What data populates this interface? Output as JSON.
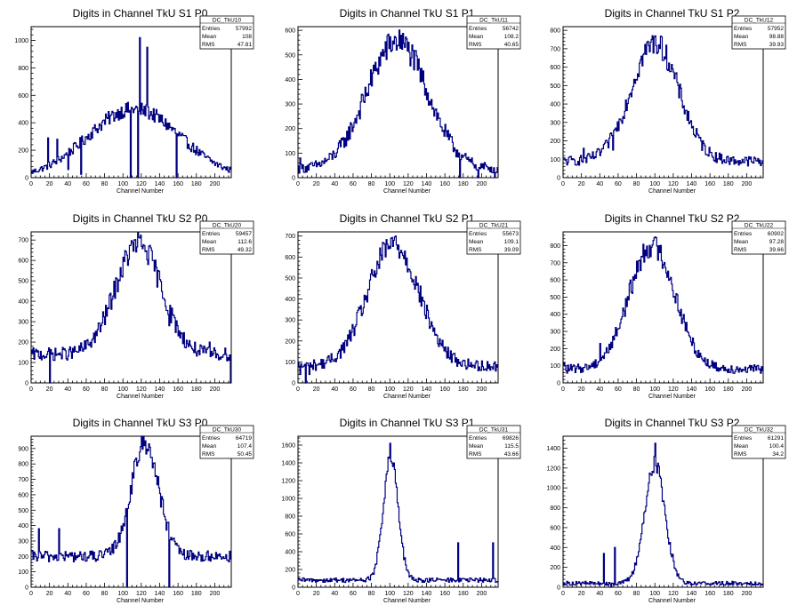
{
  "chart_data": [
    {
      "type": "histogram",
      "title": "Digits in Channel TkU S1 P0",
      "xlabel": "Channel Number",
      "stats": {
        "name": "DC_TkU10",
        "entries": "57992",
        "mean": "108",
        "rms": "47.81"
      },
      "xlim": [
        0,
        218
      ],
      "ylim": [
        0,
        1100
      ],
      "xticks": [
        0,
        20,
        40,
        60,
        80,
        100,
        120,
        140,
        160,
        180,
        200
      ],
      "yticks": [
        0,
        200,
        400,
        600,
        800,
        1000
      ],
      "profile": {
        "type": "peak",
        "mu": 112,
        "sigma": 50,
        "amp": 500,
        "base": 0
      },
      "spikes": [
        [
          118,
          1020
        ],
        [
          126,
          950
        ],
        [
          18,
          290
        ],
        [
          28,
          280
        ],
        [
          40,
          60
        ],
        [
          54,
          25
        ],
        [
          108,
          0
        ],
        [
          116,
          0
        ],
        [
          158,
          0
        ]
      ],
      "color": "#000080"
    },
    {
      "type": "histogram",
      "title": "Digits in Channel TkU S1 P1",
      "xlabel": "Channel Number",
      "stats": {
        "name": "DC_TkU11",
        "entries": "56742",
        "mean": "108.2",
        "rms": "40.65"
      },
      "xlim": [
        0,
        218
      ],
      "ylim": [
        0,
        615
      ],
      "xticks": [
        0,
        20,
        40,
        60,
        80,
        100,
        120,
        140,
        160,
        180,
        200
      ],
      "yticks": [
        0,
        100,
        200,
        300,
        400,
        500,
        600
      ],
      "profile": {
        "type": "peak",
        "mu": 108,
        "sigma": 33,
        "amp": 520,
        "base": 35
      },
      "spikes": [
        [
          112,
          580
        ],
        [
          2,
          80
        ],
        [
          176,
          0
        ],
        [
          196,
          0
        ],
        [
          214,
          0
        ]
      ],
      "color": "#000080"
    },
    {
      "type": "histogram",
      "title": "Digits in Channel TkU S1 P2",
      "xlabel": "Channel Number",
      "stats": {
        "name": "DC_TkU12",
        "entries": "57952",
        "mean": "98.88",
        "rms": "39.93"
      },
      "xlim": [
        0,
        218
      ],
      "ylim": [
        0,
        820
      ],
      "xticks": [
        0,
        20,
        40,
        60,
        80,
        100,
        120,
        140,
        160,
        180,
        200
      ],
      "yticks": [
        0,
        100,
        200,
        300,
        400,
        500,
        600,
        700,
        800
      ],
      "profile": {
        "type": "peak",
        "mu": 100,
        "sigma": 26,
        "amp": 640,
        "base": 90
      },
      "spikes": [
        [
          100,
          770
        ],
        [
          22,
          160
        ],
        [
          44,
          180
        ],
        [
          54,
          150
        ]
      ],
      "color": "#000080"
    },
    {
      "type": "histogram",
      "title": "Digits in Channel TkU S2 P0",
      "xlabel": "Channel Number",
      "stats": {
        "name": "DC_TkU20",
        "entries": "59457",
        "mean": "112.6",
        "rms": "49.32"
      },
      "xlim": [
        0,
        218
      ],
      "ylim": [
        0,
        740
      ],
      "xticks": [
        0,
        20,
        40,
        60,
        80,
        100,
        120,
        140,
        160,
        180,
        200
      ],
      "yticks": [
        0,
        100,
        200,
        300,
        400,
        500,
        600,
        700
      ],
      "profile": {
        "type": "peak",
        "mu": 117,
        "sigma": 25,
        "amp": 540,
        "base": 140
      },
      "spikes": [
        [
          118,
          710
        ],
        [
          20,
          0
        ],
        [
          150,
          280
        ],
        [
          194,
          200
        ],
        [
          217,
          0
        ]
      ],
      "color": "#000080"
    },
    {
      "type": "histogram",
      "title": "Digits in Channel TkU S2 P1",
      "xlabel": "Channel Number",
      "stats": {
        "name": "DC_TkU21",
        "entries": "55673",
        "mean": "109.1",
        "rms": "39.09"
      },
      "xlim": [
        0,
        218
      ],
      "ylim": [
        0,
        720
      ],
      "xticks": [
        0,
        20,
        40,
        60,
        80,
        100,
        120,
        140,
        160,
        180,
        200
      ],
      "yticks": [
        0,
        100,
        200,
        300,
        400,
        500,
        600,
        700
      ],
      "profile": {
        "type": "peak",
        "mu": 104,
        "sigma": 28,
        "amp": 580,
        "base": 80
      },
      "spikes": [
        [
          106,
          700
        ],
        [
          2,
          40
        ],
        [
          8,
          0
        ],
        [
          12,
          40
        ]
      ],
      "color": "#000080"
    },
    {
      "type": "histogram",
      "title": "Digits in Channel TkU S2 P2",
      "xlabel": "Channel Number",
      "stats": {
        "name": "DC_TkU22",
        "entries": "60902",
        "mean": "97.28",
        "rms": "39.66"
      },
      "xlim": [
        0,
        218
      ],
      "ylim": [
        0,
        880
      ],
      "xticks": [
        0,
        20,
        40,
        60,
        80,
        100,
        120,
        140,
        160,
        180,
        200
      ],
      "yticks": [
        0,
        100,
        200,
        300,
        400,
        500,
        600,
        700,
        800
      ],
      "profile": {
        "type": "peak",
        "mu": 97,
        "sigma": 25,
        "amp": 720,
        "base": 80
      },
      "spikes": [
        [
          98,
          830
        ],
        [
          40,
          230
        ],
        [
          1,
          120
        ]
      ],
      "color": "#000080"
    },
    {
      "type": "histogram",
      "title": "Digits in Channel TkU S3 P0",
      "xlabel": "Channel Number",
      "stats": {
        "name": "DC_TkU30",
        "entries": "64719",
        "mean": "107.4",
        "rms": "50.45"
      },
      "xlim": [
        0,
        218
      ],
      "ylim": [
        0,
        980
      ],
      "xticks": [
        0,
        20,
        40,
        60,
        80,
        100,
        120,
        140,
        160,
        180,
        200
      ],
      "yticks": [
        0,
        100,
        200,
        300,
        400,
        500,
        600,
        700,
        800,
        900
      ],
      "profile": {
        "type": "peak",
        "mu": 124,
        "sigma": 15,
        "amp": 740,
        "base": 200
      },
      "spikes": [
        [
          124,
          950
        ],
        [
          8,
          380
        ],
        [
          30,
          380
        ],
        [
          104,
          0
        ],
        [
          150,
          0
        ]
      ],
      "color": "#000080"
    },
    {
      "type": "histogram",
      "title": "Digits in Channel TkU S3 P1",
      "xlabel": "Channel Number",
      "stats": {
        "name": "DC_TkU31",
        "entries": "69826",
        "mean": "115.5",
        "rms": "43.66"
      },
      "xlim": [
        0,
        218
      ],
      "ylim": [
        0,
        1700
      ],
      "xticks": [
        0,
        20,
        40,
        60,
        80,
        100,
        120,
        140,
        160,
        180,
        200
      ],
      "yticks": [
        0,
        200,
        400,
        600,
        800,
        1000,
        1200,
        1400,
        1600
      ],
      "profile": {
        "type": "peak",
        "mu": 101,
        "sigma": 8,
        "amp": 1380,
        "base": 80
      },
      "spikes": [
        [
          100,
          1620
        ],
        [
          112,
          580
        ],
        [
          174,
          500
        ],
        [
          212,
          500
        ]
      ],
      "color": "#000080"
    },
    {
      "type": "histogram",
      "title": "Digits in Channel TkU S3 P2",
      "xlabel": "Channel Number",
      "stats": {
        "name": "DC_TkU32",
        "entries": "61291",
        "mean": "100.4",
        "rms": "34.2"
      },
      "xlim": [
        0,
        218
      ],
      "ylim": [
        0,
        1520
      ],
      "xticks": [
        0,
        20,
        40,
        60,
        80,
        100,
        120,
        140,
        160,
        180,
        200
      ],
      "yticks": [
        0,
        200,
        400,
        600,
        800,
        1000,
        1200,
        1400
      ],
      "profile": {
        "type": "peak",
        "mu": 100,
        "sigma": 11,
        "amp": 1200,
        "base": 40
      },
      "spikes": [
        [
          100,
          1450
        ],
        [
          44,
          340
        ],
        [
          52,
          0
        ],
        [
          56,
          400
        ]
      ],
      "color": "#000080"
    }
  ],
  "labels": {
    "entries": "Entries",
    "mean": "Mean",
    "rms": "RMS"
  }
}
